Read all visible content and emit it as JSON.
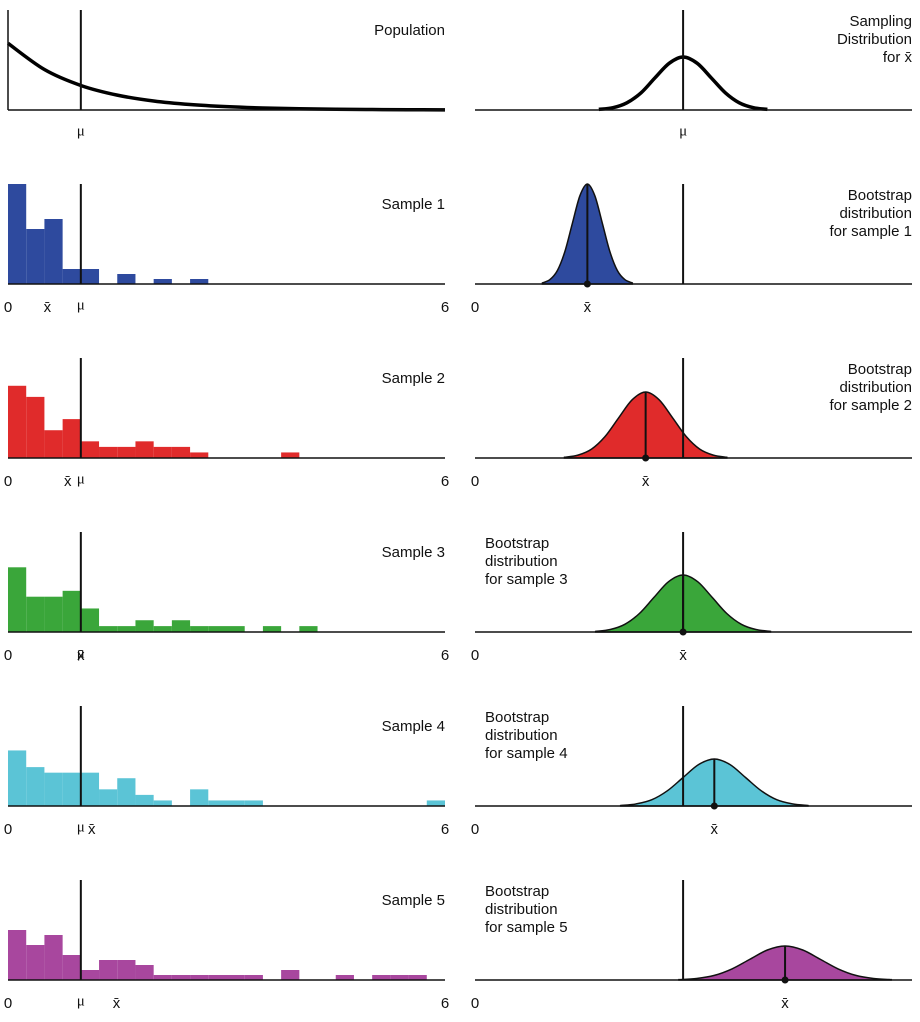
{
  "chart_data": [
    {
      "type": "line",
      "title_lines": [
        "Population"
      ],
      "title_position": "right",
      "color": "#000000",
      "x": [
        0,
        0.5,
        1,
        1.5,
        2,
        2.5,
        3,
        3.5,
        4,
        4.5,
        5,
        5.5,
        6
      ],
      "values": [
        1,
        0.607,
        0.368,
        0.223,
        0.135,
        0.082,
        0.05,
        0.03,
        0.018,
        0.011,
        0.007,
        0.004,
        0.002
      ],
      "xlim": [
        0,
        6
      ],
      "ylim": [
        0,
        1.5
      ],
      "y_axis": true,
      "mu": {
        "value": 1,
        "label": "μ"
      }
    },
    {
      "type": "line",
      "title_lines": [
        "Sampling",
        "Distribution",
        "for x̄"
      ],
      "title_position": "right",
      "color": "#000000",
      "x": [
        0.595,
        0.663,
        0.73,
        0.798,
        0.865,
        0.933,
        1.0,
        1.068,
        1.135,
        1.203,
        1.27,
        1.338,
        1.405
      ],
      "values": [
        0.006,
        0.023,
        0.072,
        0.172,
        0.322,
        0.467,
        0.53,
        0.467,
        0.322,
        0.172,
        0.072,
        0.023,
        0.006
      ],
      "xlim": [
        0,
        2.1
      ],
      "ylim": [
        0,
        1
      ],
      "mu": {
        "value": 1,
        "label": "μ"
      }
    },
    {
      "type": "histogram",
      "title_lines": [
        "Sample 1"
      ],
      "title_position": "right",
      "color": "#2e4a9e",
      "bins": [
        0,
        0.25,
        0.5,
        0.75,
        1,
        1.25,
        1.5,
        1.75,
        2,
        2.25,
        2.5,
        2.75
      ],
      "values": [
        20,
        11,
        13,
        3,
        3,
        0,
        2,
        0,
        1,
        0,
        1
      ],
      "xlim": [
        0,
        6
      ],
      "ylim": [
        0,
        20
      ],
      "xticks": [
        0,
        6
      ],
      "mu": {
        "value": 1,
        "label": "μ"
      },
      "xbar": {
        "value": 0.54,
        "label": "x̄"
      }
    },
    {
      "type": "area",
      "title_lines": [
        "Bootstrap",
        "distribution",
        "for sample 1"
      ],
      "title_position": "right",
      "color": "#2e4a9e",
      "x": [
        0.324,
        0.36,
        0.396,
        0.432,
        0.468,
        0.504,
        0.54,
        0.576,
        0.612,
        0.648,
        0.684,
        0.72,
        0.756
      ],
      "values": [
        0.011,
        0.044,
        0.135,
        0.325,
        0.607,
        0.882,
        1,
        0.882,
        0.607,
        0.325,
        0.135,
        0.044,
        0.011
      ],
      "xlim": [
        0,
        2.1
      ],
      "ylim": [
        0,
        1
      ],
      "xticks": [
        0
      ],
      "mu": {
        "value": 1
      },
      "xbar": {
        "value": 0.54,
        "label": "x̄"
      }
    },
    {
      "type": "histogram",
      "title_lines": [
        "Sample 2"
      ],
      "title_position": "right",
      "color": "#e02b2b",
      "bins": [
        0,
        0.25,
        0.5,
        0.75,
        1,
        1.25,
        1.5,
        1.75,
        2,
        2.25,
        2.5,
        2.75,
        3,
        3.25,
        3.5,
        3.75,
        4
      ],
      "values": [
        13,
        11,
        5,
        7,
        3,
        2,
        2,
        3,
        2,
        2,
        1,
        0,
        0,
        0,
        0,
        1
      ],
      "xlim": [
        0,
        6
      ],
      "ylim": [
        0,
        18
      ],
      "xticks": [
        0,
        6
      ],
      "mu": {
        "value": 1,
        "label": "μ"
      },
      "xbar": {
        "value": 0.82,
        "label": "x̄"
      }
    },
    {
      "type": "area",
      "title_lines": [
        "Bootstrap",
        "distribution",
        "for sample 2"
      ],
      "title_position": "right",
      "color": "#e02b2b",
      "x": [
        0.43,
        0.495,
        0.56,
        0.625,
        0.69,
        0.755,
        0.82,
        0.885,
        0.95,
        1.015,
        1.08,
        1.145,
        1.21
      ],
      "values": [
        0.007,
        0.029,
        0.089,
        0.215,
        0.401,
        0.582,
        0.66,
        0.582,
        0.401,
        0.215,
        0.089,
        0.029,
        0.007
      ],
      "xlim": [
        0,
        2.1
      ],
      "ylim": [
        0,
        1
      ],
      "xticks": [
        0
      ],
      "mu": {
        "value": 1
      },
      "xbar": {
        "value": 0.82,
        "label": "x̄"
      }
    },
    {
      "type": "histogram",
      "title_lines": [
        "Sample 3"
      ],
      "title_position": "right",
      "color": "#3aa63a",
      "bins": [
        0,
        0.25,
        0.5,
        0.75,
        1,
        1.25,
        1.5,
        1.75,
        2,
        2.25,
        2.5,
        2.75,
        3,
        3.25,
        3.5,
        3.75,
        4,
        4.25
      ],
      "values": [
        11,
        6,
        6,
        7,
        4,
        1,
        1,
        2,
        1,
        2,
        1,
        1,
        1,
        0,
        1,
        0,
        1
      ],
      "xlim": [
        0,
        6
      ],
      "ylim": [
        0,
        17
      ],
      "xticks": [
        0,
        6
      ],
      "mu": {
        "value": 1,
        "label": "μ"
      },
      "xbar": {
        "value": 1.0,
        "label": "x̄"
      }
    },
    {
      "type": "area",
      "title_lines": [
        "Bootstrap",
        "distribution",
        "for sample 3"
      ],
      "title_position": "left",
      "color": "#3aa63a",
      "x": [
        0.58,
        0.65,
        0.72,
        0.79,
        0.86,
        0.93,
        1.0,
        1.07,
        1.14,
        1.21,
        1.28,
        1.35,
        1.42
      ],
      "values": [
        0.006,
        0.025,
        0.077,
        0.185,
        0.346,
        0.503,
        0.57,
        0.503,
        0.346,
        0.185,
        0.077,
        0.025,
        0.006
      ],
      "xlim": [
        0,
        2.1
      ],
      "ylim": [
        0,
        1
      ],
      "xticks": [
        0
      ],
      "mu": {
        "value": 1
      },
      "xbar": {
        "value": 1.0,
        "label": "x̄"
      }
    },
    {
      "type": "histogram",
      "title_lines": [
        "Sample 4"
      ],
      "title_position": "right",
      "color": "#5bc4d6",
      "bins": [
        0,
        0.25,
        0.5,
        0.75,
        1,
        1.25,
        1.5,
        1.75,
        2,
        2.25,
        2.5,
        2.75,
        3,
        3.25,
        3.5,
        3.75,
        4,
        4.25,
        4.5,
        4.75,
        5,
        5.25,
        5.5,
        5.75,
        6
      ],
      "values": [
        10,
        7,
        6,
        6,
        6,
        3,
        5,
        2,
        1,
        0,
        3,
        1,
        1,
        1,
        0,
        0,
        0,
        0,
        0,
        0,
        0,
        0,
        0,
        1
      ],
      "xlim": [
        0,
        6
      ],
      "ylim": [
        0,
        18
      ],
      "xticks": [
        0,
        6
      ],
      "mu": {
        "value": 1,
        "label": "μ"
      },
      "xbar": {
        "value": 1.15,
        "label": "x̄"
      }
    },
    {
      "type": "area",
      "title_lines": [
        "Bootstrap",
        "distribution",
        "for sample 4"
      ],
      "title_position": "left",
      "color": "#5bc4d6",
      "x": [
        0.7,
        0.775,
        0.85,
        0.925,
        1.0,
        1.075,
        1.15,
        1.225,
        1.3,
        1.375,
        1.45,
        1.525,
        1.6
      ],
      "values": [
        0.005,
        0.021,
        0.063,
        0.153,
        0.285,
        0.415,
        0.47,
        0.415,
        0.285,
        0.153,
        0.063,
        0.021,
        0.005
      ],
      "xlim": [
        0,
        2.1
      ],
      "ylim": [
        0,
        1
      ],
      "xticks": [
        0
      ],
      "mu": {
        "value": 1
      },
      "xbar": {
        "value": 1.15,
        "label": "x̄"
      }
    },
    {
      "type": "histogram",
      "title_lines": [
        "Sample 5"
      ],
      "title_position": "right",
      "color": "#a8479e",
      "bins": [
        0,
        0.25,
        0.5,
        0.75,
        1,
        1.25,
        1.5,
        1.75,
        2,
        2.25,
        2.5,
        2.75,
        3,
        3.25,
        3.5,
        3.75,
        4,
        4.25,
        4.5,
        4.75,
        5,
        5.25,
        5.5,
        5.75
      ],
      "values": [
        10,
        7,
        9,
        5,
        2,
        4,
        4,
        3,
        1,
        1,
        1,
        1,
        1,
        1,
        0,
        2,
        0,
        0,
        1,
        0,
        1,
        1,
        1
      ],
      "xlim": [
        0,
        6
      ],
      "ylim": [
        0,
        20
      ],
      "xticks": [
        0,
        6
      ],
      "mu": {
        "value": 1,
        "label": "μ"
      },
      "xbar": {
        "value": 1.49,
        "label": "x̄"
      }
    },
    {
      "type": "area",
      "title_lines": [
        "Bootstrap",
        "distribution",
        "for sample 5"
      ],
      "title_position": "left",
      "color": "#a8479e",
      "x": [
        0.98,
        1.065,
        1.15,
        1.235,
        1.32,
        1.405,
        1.49,
        1.575,
        1.66,
        1.745,
        1.83,
        1.915,
        2.0
      ],
      "values": [
        0.004,
        0.015,
        0.046,
        0.111,
        0.206,
        0.3,
        0.34,
        0.3,
        0.206,
        0.111,
        0.046,
        0.015,
        0.004
      ],
      "xlim": [
        0,
        2.1
      ],
      "ylim": [
        0,
        1
      ],
      "xticks": [
        0
      ],
      "mu": {
        "value": 1
      },
      "xbar": {
        "value": 1.49,
        "label": "x̄"
      }
    }
  ]
}
